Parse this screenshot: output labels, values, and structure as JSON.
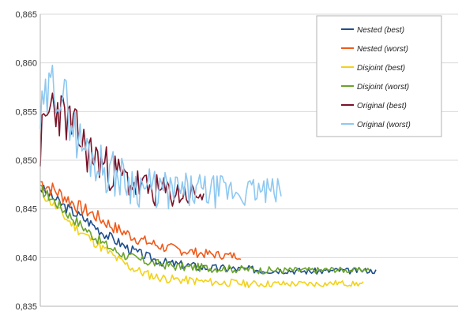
{
  "chart_data": {
    "type": "line",
    "title": "",
    "xlabel": "",
    "ylabel": "",
    "ylim": [
      0.835,
      0.865
    ],
    "yticks": [
      "0,835",
      "0,840",
      "0,845",
      "0,850",
      "0,855",
      "0,860",
      "0,865"
    ],
    "grid": "horizontal",
    "legend_position": "top-right",
    "series": [
      {
        "name": "Nested (best)",
        "color": "#1f4e8c",
        "values": [
          0.8472,
          0.8462,
          0.8452,
          0.8444,
          0.8436,
          0.8426,
          0.8418,
          0.841,
          0.8404,
          0.8399,
          0.8395,
          0.8393,
          0.8392,
          0.839,
          0.8389,
          0.8389,
          0.8388,
          0.8388,
          0.8387,
          0.8387,
          0.8387,
          0.8386,
          0.8386,
          0.8386,
          0.8387,
          0.8386,
          0.8387,
          0.8386
        ]
      },
      {
        "name": "Nested (worst)",
        "color": "#f05a1a",
        "values": [
          0.8478,
          0.847,
          0.8462,
          0.8452,
          0.8446,
          0.8438,
          0.843,
          0.8424,
          0.8418,
          0.8414,
          0.841,
          0.8408,
          0.8406,
          0.8404,
          0.8403,
          0.8402,
          0.8402
        ]
      },
      {
        "name": "Disjoint (best)",
        "color": "#f2d21b",
        "values": [
          0.8468,
          0.8455,
          0.844,
          0.8428,
          0.8418,
          0.8408,
          0.8398,
          0.839,
          0.8384,
          0.838,
          0.8378,
          0.8377,
          0.8376,
          0.8375,
          0.8374,
          0.8374,
          0.8373,
          0.8373,
          0.8373,
          0.8373,
          0.8373,
          0.8373,
          0.8373,
          0.8374,
          0.8373,
          0.8373
        ]
      },
      {
        "name": "Disjoint (worst)",
        "color": "#6aa32a",
        "values": [
          0.847,
          0.846,
          0.8448,
          0.8437,
          0.8426,
          0.8416,
          0.8408,
          0.8402,
          0.8398,
          0.8395,
          0.8393,
          0.8391,
          0.839,
          0.839,
          0.8389,
          0.8389,
          0.8388,
          0.8388,
          0.8387,
          0.8387,
          0.8387,
          0.8387,
          0.8387,
          0.8387,
          0.8388,
          0.8387,
          0.8387,
          0.8388
        ]
      },
      {
        "name": "Original (best)",
        "color": "#7a1227",
        "values": [
          0.8515,
          0.856,
          0.8545,
          0.853,
          0.851,
          0.85,
          0.849,
          0.8482,
          0.8476,
          0.847,
          0.8468,
          0.8466,
          0.8465,
          0.8465,
          0.8465
        ]
      },
      {
        "name": "Original (worst)",
        "color": "#8ec8f0",
        "values": [
          0.854,
          0.858,
          0.856,
          0.852,
          0.8505,
          0.8492,
          0.8485,
          0.8478,
          0.8473,
          0.847,
          0.8468,
          0.8468,
          0.8468,
          0.8468,
          0.8468,
          0.8468,
          0.8467,
          0.8468,
          0.8468,
          0.8468
        ]
      }
    ]
  }
}
